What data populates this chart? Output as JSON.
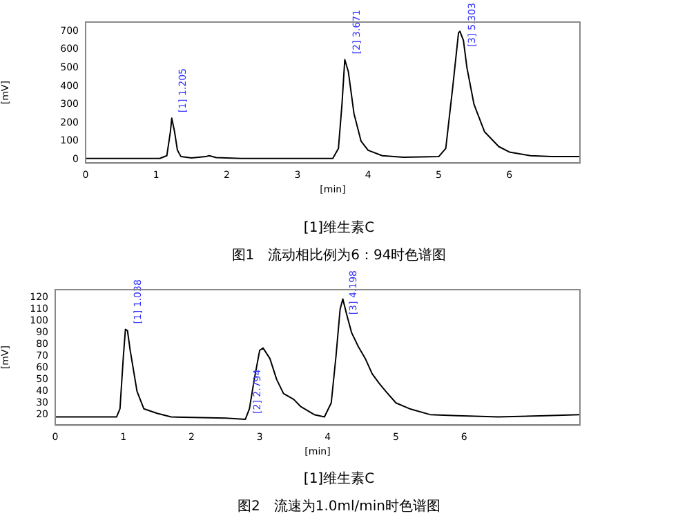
{
  "chart_data": [
    {
      "type": "line",
      "title": "图1　流动相比例为6：94时色谱图",
      "subtitle": "[1]维生素C",
      "xlabel": "[min]",
      "ylabel": "[mV]",
      "xlim": [
        0,
        7
      ],
      "xticks": [
        0,
        1,
        2,
        3,
        4,
        5,
        6
      ],
      "ylim": [
        -20,
        750
      ],
      "yticks": [
        0,
        100,
        200,
        300,
        400,
        500,
        600,
        700
      ],
      "grid": false,
      "legend": false,
      "marker": "none",
      "line_style": "solid",
      "series": [
        {
          "color": "#000000",
          "x": [
            0,
            1.05,
            1.15,
            1.2,
            1.22,
            1.26,
            1.3,
            1.35,
            1.5,
            1.7,
            1.75,
            1.85,
            2.2,
            3.5,
            3.58,
            3.63,
            3.67,
            3.72,
            3.8,
            3.9,
            4.0,
            4.2,
            4.5,
            5.0,
            5.1,
            5.2,
            5.28,
            5.3,
            5.35,
            5.4,
            5.5,
            5.65,
            5.85,
            6.0,
            6.3,
            6.6,
            7
          ],
          "values": [
            5,
            5,
            20,
            150,
            225,
            150,
            50,
            15,
            8,
            15,
            20,
            10,
            5,
            5,
            60,
            300,
            545,
            480,
            250,
            100,
            50,
            20,
            12,
            15,
            60,
            400,
            690,
            700,
            650,
            500,
            300,
            150,
            70,
            40,
            20,
            15,
            15
          ]
        }
      ],
      "annotations": [
        {
          "text": "[1] 1.205",
          "x": 1.205,
          "y": 225
        },
        {
          "text": "[2] 3.671",
          "x": 3.671,
          "y": 545
        },
        {
          "text": "[3] 5.303",
          "x": 5.303,
          "y": 700
        }
      ]
    },
    {
      "type": "line",
      "title": "图2　流速为1.0ml/min时色谱图",
      "subtitle": "[1]维生素C",
      "xlabel": "[min]",
      "ylabel": "[mV]",
      "xlim": [
        0,
        7.7
      ],
      "xticks": [
        0,
        1,
        2,
        3,
        4,
        5,
        6
      ],
      "ylim": [
        11,
        127
      ],
      "yticks": [
        20,
        30,
        40,
        50,
        60,
        70,
        80,
        90,
        100,
        110,
        120
      ],
      "grid": false,
      "legend": false,
      "marker": "none",
      "line_style": "solid",
      "series": [
        {
          "color": "#000000",
          "x": [
            0,
            0.9,
            0.95,
            1.0,
            1.03,
            1.06,
            1.1,
            1.2,
            1.3,
            1.5,
            1.7,
            2.5,
            2.79,
            2.85,
            2.92,
            3.0,
            3.05,
            3.15,
            3.25,
            3.35,
            3.5,
            3.6,
            3.8,
            3.95,
            4.05,
            4.12,
            4.18,
            4.22,
            4.28,
            4.35,
            4.45,
            4.55,
            4.65,
            4.75,
            4.85,
            5.0,
            5.2,
            5.5,
            5.9,
            6.5,
            7.2,
            7.7
          ],
          "values": [
            18,
            18,
            25,
            70,
            93,
            92,
            75,
            40,
            25,
            21,
            18,
            17,
            16,
            25,
            50,
            75,
            77,
            68,
            50,
            38,
            33,
            27,
            20,
            18,
            30,
            70,
            110,
            119,
            105,
            90,
            78,
            68,
            55,
            47,
            40,
            30,
            25,
            20,
            19,
            18,
            19,
            20
          ]
        }
      ],
      "annotations": [
        {
          "text": "[1] 1.038",
          "x": 1.038,
          "y": 93
        },
        {
          "text": "[2] 2.794",
          "x": 2.794,
          "y": 16
        },
        {
          "text": "[3] 4.198",
          "x": 4.198,
          "y": 119
        }
      ]
    }
  ]
}
